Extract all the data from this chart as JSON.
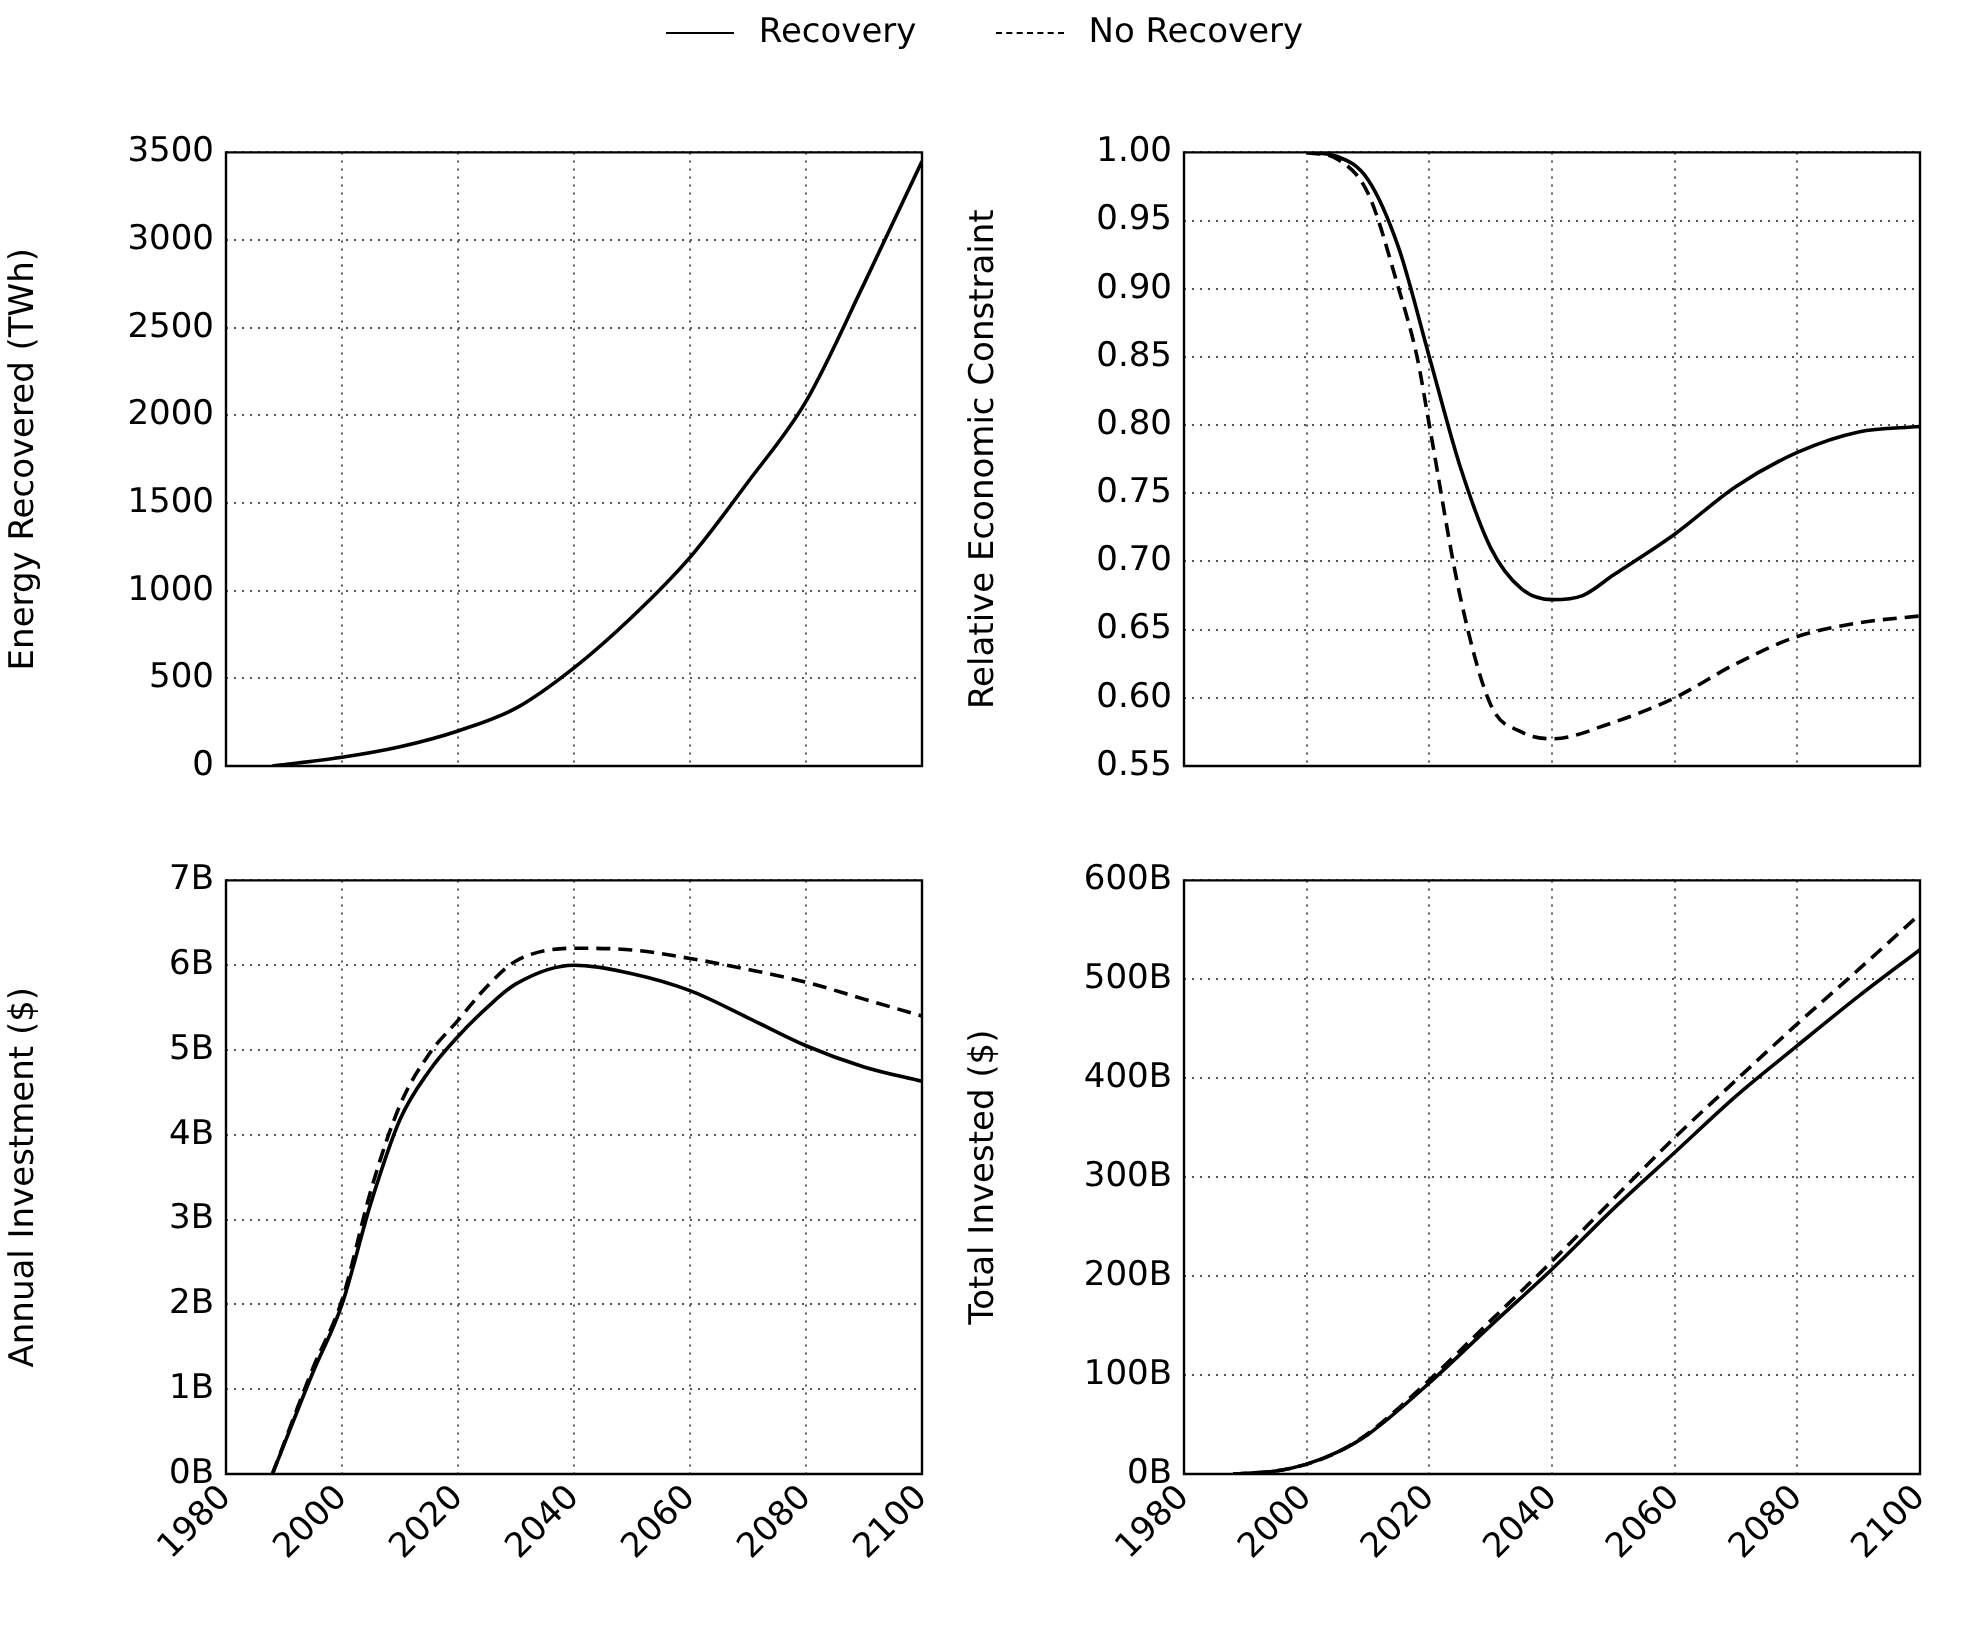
{
  "chart_data": [
    {
      "type": "line",
      "ylabel": "Energy Recovered (TWh)",
      "xlim": [
        1980,
        2100
      ],
      "xticks": [
        1980,
        2000,
        2020,
        2040,
        2060,
        2080,
        2100
      ],
      "ylim": [
        0,
        3500
      ],
      "yticks": [
        0,
        500,
        1000,
        1500,
        2000,
        2500,
        3000,
        3500
      ],
      "grid": true,
      "marker": "none",
      "tick_labels": "y",
      "legend": "top",
      "series": [
        {
          "name": "Recovery",
          "color": "#000000",
          "line_style": "solid",
          "x": [
            1988,
            2000,
            2010,
            2020,
            2030,
            2040,
            2050,
            2060,
            2070,
            2080,
            2090,
            2100
          ],
          "values": [
            0,
            50,
            110,
            200,
            330,
            560,
            850,
            1190,
            1620,
            2080,
            2750,
            3450
          ]
        }
      ]
    },
    {
      "type": "line",
      "ylabel": "Relative Economic Constraint",
      "xlim": [
        1980,
        2100
      ],
      "xticks": [
        1980,
        2000,
        2020,
        2040,
        2060,
        2080,
        2100
      ],
      "ylim": [
        0.55,
        1.0
      ],
      "yticks": [
        {
          "value": 0.55,
          "label": "0.55"
        },
        {
          "value": 0.6,
          "label": "0.60"
        },
        {
          "value": 0.65,
          "label": "0.65"
        },
        {
          "value": 0.7,
          "label": "0.70"
        },
        {
          "value": 0.75,
          "label": "0.75"
        },
        {
          "value": 0.8,
          "label": "0.80"
        },
        {
          "value": 0.85,
          "label": "0.85"
        },
        {
          "value": 0.9,
          "label": "0.90"
        },
        {
          "value": 0.95,
          "label": "0.95"
        },
        {
          "value": 1.0,
          "label": "1.00"
        }
      ],
      "grid": true,
      "marker": "none",
      "tick_labels": "y",
      "legend": "top",
      "series": [
        {
          "name": "Recovery",
          "color": "#000000",
          "line_style": "solid",
          "x": [
            2000,
            2005,
            2010,
            2015,
            2020,
            2025,
            2030,
            2035,
            2040,
            2045,
            2050,
            2060,
            2070,
            2080,
            2090,
            2100
          ],
          "values": [
            1.0,
            0.997,
            0.98,
            0.93,
            0.85,
            0.77,
            0.71,
            0.68,
            0.672,
            0.675,
            0.69,
            0.72,
            0.755,
            0.78,
            0.795,
            0.799
          ]
        },
        {
          "name": "No Recovery",
          "color": "#000000",
          "line_style": "dashed",
          "x": [
            2000,
            2005,
            2010,
            2015,
            2018,
            2020,
            2025,
            2030,
            2035,
            2040,
            2050,
            2060,
            2070,
            2080,
            2090,
            2100
          ],
          "values": [
            1.0,
            0.995,
            0.97,
            0.9,
            0.85,
            0.8,
            0.675,
            0.595,
            0.575,
            0.57,
            0.582,
            0.6,
            0.625,
            0.645,
            0.655,
            0.66
          ]
        }
      ]
    },
    {
      "type": "line",
      "ylabel": "Annual Investment ($)",
      "xlim": [
        1980,
        2100
      ],
      "xticks": [
        1980,
        2000,
        2020,
        2040,
        2060,
        2080,
        2100
      ],
      "ylim": [
        0,
        7
      ],
      "yticks": [
        {
          "value": 0,
          "label": "0B"
        },
        {
          "value": 1,
          "label": "1B"
        },
        {
          "value": 2,
          "label": "2B"
        },
        {
          "value": 3,
          "label": "3B"
        },
        {
          "value": 4,
          "label": "4B"
        },
        {
          "value": 5,
          "label": "5B"
        },
        {
          "value": 6,
          "label": "6B"
        },
        {
          "value": 7,
          "label": "7B"
        }
      ],
      "grid": true,
      "marker": "none",
      "legend": "top",
      "series": [
        {
          "name": "Recovery",
          "color": "#000000",
          "line_style": "solid",
          "x": [
            1988,
            1995,
            2000,
            2005,
            2010,
            2015,
            2020,
            2025,
            2030,
            2040,
            2050,
            2060,
            2070,
            2080,
            2090,
            2100
          ],
          "values": [
            0,
            1.2,
            2.0,
            3.2,
            4.18,
            4.75,
            5.16,
            5.5,
            5.78,
            6.0,
            5.9,
            5.7,
            5.38,
            5.05,
            4.8,
            4.63
          ]
        },
        {
          "name": "No Recovery",
          "color": "#000000",
          "line_style": "dashed",
          "x": [
            1988,
            1995,
            2000,
            2005,
            2010,
            2015,
            2020,
            2025,
            2030,
            2040,
            2050,
            2060,
            2070,
            2080,
            2090,
            2100
          ],
          "values": [
            0,
            1.25,
            2.05,
            3.35,
            4.35,
            4.95,
            5.35,
            5.75,
            6.05,
            6.2,
            6.18,
            6.08,
            5.95,
            5.8,
            5.6,
            5.4
          ]
        }
      ]
    },
    {
      "type": "line",
      "ylabel": "Total Invested ($)",
      "xlim": [
        1980,
        2100
      ],
      "xticks": [
        1980,
        2000,
        2020,
        2040,
        2060,
        2080,
        2100
      ],
      "ylim": [
        0,
        600
      ],
      "yticks": [
        {
          "value": 0,
          "label": "0B"
        },
        {
          "value": 100,
          "label": "100B"
        },
        {
          "value": 200,
          "label": "200B"
        },
        {
          "value": 300,
          "label": "300B"
        },
        {
          "value": 400,
          "label": "400B"
        },
        {
          "value": 500,
          "label": "500B"
        },
        {
          "value": 600,
          "label": "600B"
        }
      ],
      "grid": true,
      "marker": "none",
      "legend": "top",
      "series": [
        {
          "name": "Recovery",
          "color": "#000000",
          "line_style": "solid",
          "x": [
            1988,
            1995,
            2000,
            2005,
            2010,
            2020,
            2030,
            2040,
            2050,
            2060,
            2070,
            2080,
            2090,
            2100
          ],
          "values": [
            0,
            3,
            10,
            22,
            40,
            92,
            150,
            207,
            268,
            325,
            382,
            433,
            483,
            530
          ]
        },
        {
          "name": "No Recovery",
          "color": "#000000",
          "line_style": "dashed",
          "x": [
            1988,
            1995,
            2000,
            2005,
            2010,
            2020,
            2030,
            2040,
            2050,
            2060,
            2070,
            2080,
            2090,
            2100
          ],
          "values": [
            0,
            3,
            10,
            22,
            41,
            95,
            155,
            215,
            278,
            340,
            398,
            455,
            510,
            566
          ]
        }
      ]
    }
  ]
}
